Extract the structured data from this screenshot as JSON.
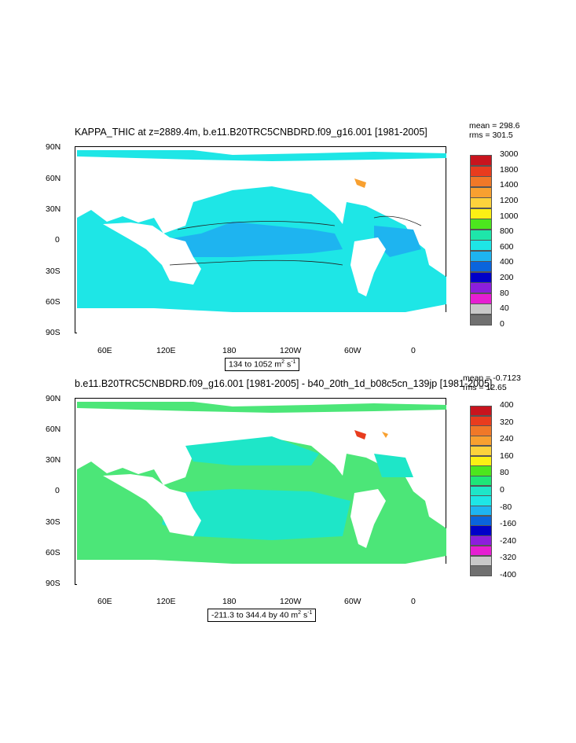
{
  "panel1": {
    "title": "KAPPA_THIC at z=2889.4m, b.e11.B20TRC5CNBDRD.f09_g16.001 [1981-2005]",
    "stats": [
      "mean = 298.6",
      "rms = 301.5"
    ],
    "range_label": "134 to 1052 m",
    "range_units_tail": " s",
    "sup1": "2",
    "sup2": "-1",
    "lat_labels": [
      "90N",
      "60N",
      "30N",
      "0",
      "30S",
      "60S",
      "90S"
    ],
    "lon_labels": [
      "60E",
      "120E",
      "180",
      "120W",
      "60W",
      "0"
    ],
    "legend_labels": [
      "3000",
      "1800",
      "1400",
      "1200",
      "1000",
      "800",
      "600",
      "400",
      "200",
      "80",
      "40",
      "0"
    ],
    "legend_colors": [
      "#c8141e",
      "#e83c1e",
      "#f07828",
      "#f8a030",
      "#fcd23c",
      "#fcf014",
      "#4ce61e",
      "#1ee6aa",
      "#1ee6e6",
      "#1eb4f0",
      "#0a64dc",
      "#0000c8",
      "#8c1edc",
      "#e61ed2",
      "#c8c8c8",
      "#707070"
    ]
  },
  "panel2": {
    "title": "b.e11.B20TRC5CNBDRD.f09_g16.001 [1981-2005] - b40_20th_1d_b08c5cn_139jp [1981-2005]",
    "stats": [
      "mean = -0.7123",
      "rms = 12.65"
    ],
    "range_label": "-211.3 to 344.4 by 40 m",
    "range_units_tail": " s",
    "sup1": "2",
    "sup2": "-1",
    "lat_labels": [
      "90N",
      "60N",
      "30N",
      "0",
      "30S",
      "60S",
      "90S"
    ],
    "lon_labels": [
      "60E",
      "120E",
      "180",
      "120W",
      "60W",
      "0"
    ],
    "legend_labels": [
      "400",
      "320",
      "240",
      "160",
      "80",
      "0",
      "-80",
      "-160",
      "-240",
      "-320",
      "-400"
    ],
    "legend_colors": [
      "#c8141e",
      "#e83c1e",
      "#f07828",
      "#f8a030",
      "#fcd23c",
      "#fcf014",
      "#4ce61e",
      "#1ee678",
      "#1ee6c8",
      "#1ee6e6",
      "#1eb4f0",
      "#0a64dc",
      "#0000c8",
      "#8c1edc",
      "#e61ed2",
      "#c8c8c8",
      "#707070"
    ]
  }
}
